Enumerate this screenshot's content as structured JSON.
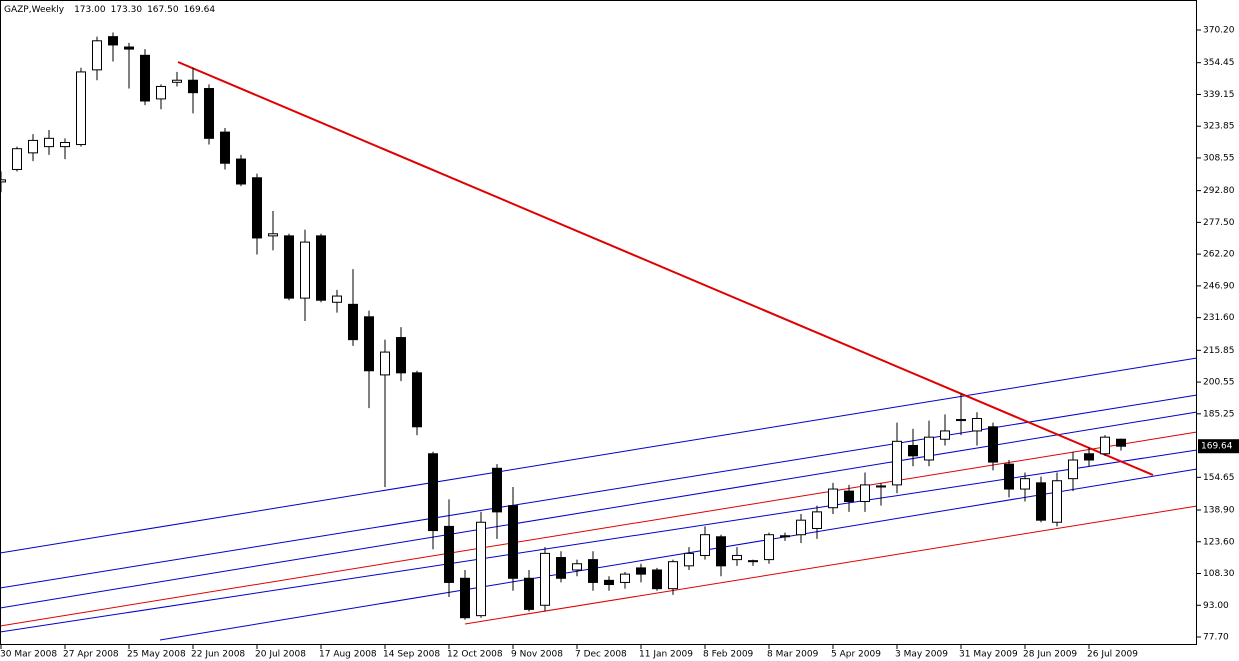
{
  "chart_data": {
    "type": "candlestick",
    "title": "GAZP,Weekly",
    "title_values": [
      "173.00",
      "173.30",
      "167.50",
      "169.64"
    ],
    "categories": [
      "30 Mar 2008",
      null,
      null,
      null,
      "27 Apr 2008",
      null,
      null,
      null,
      "25 May 2008",
      null,
      null,
      null,
      "22 Jun 2008",
      null,
      null,
      null,
      "20 Jul 2008",
      null,
      null,
      null,
      "17 Aug 2008",
      null,
      null,
      null,
      "14 Sep 2008",
      null,
      null,
      null,
      "12 Oct 2008",
      null,
      null,
      null,
      "9 Nov 2008",
      null,
      null,
      null,
      "7 Dec 2008",
      null,
      null,
      null,
      "11 Jan 2009",
      null,
      null,
      null,
      "8 Feb 2009",
      null,
      null,
      null,
      "8 Mar 2009",
      null,
      null,
      null,
      "5 Apr 2009",
      null,
      null,
      null,
      "3 May 2009",
      null,
      null,
      null,
      "31 May 2009",
      null,
      null,
      null,
      "28 Jun 2009",
      null,
      null,
      null,
      "26 Jul 2009",
      null,
      null
    ],
    "open": [
      297,
      303,
      311,
      314,
      314,
      315,
      351,
      367,
      362,
      358,
      337,
      345,
      346,
      342,
      321,
      308,
      299,
      271,
      271,
      241,
      271,
      239,
      238,
      232,
      204,
      222,
      205,
      166,
      131,
      106,
      88,
      159,
      141,
      106,
      93,
      116,
      110,
      115,
      105,
      104,
      111,
      110,
      101,
      112,
      117,
      126,
      115,
      114,
      115,
      126,
      127,
      130,
      140,
      148,
      143,
      150,
      151,
      170,
      163,
      173,
      182,
      177,
      179,
      161,
      149,
      152,
      133,
      154,
      166,
      166,
      173.0
    ],
    "high": [
      302,
      314,
      320,
      322,
      318,
      352,
      367,
      369,
      364,
      361,
      344,
      350,
      352,
      344,
      323,
      310,
      301,
      283,
      272,
      274,
      272,
      245,
      255,
      235,
      221,
      227,
      206,
      167,
      144,
      110,
      138,
      161,
      150,
      110,
      121,
      119,
      115,
      119,
      107,
      109,
      113,
      111,
      115,
      121,
      131,
      127,
      121,
      115,
      128,
      128,
      137,
      141,
      152,
      151,
      157,
      152,
      181,
      178,
      182,
      185,
      195,
      186,
      181,
      163,
      157,
      155,
      157,
      167,
      169,
      175,
      173.3
    ],
    "low": [
      292,
      302,
      307,
      310,
      308,
      314,
      346,
      355,
      342,
      334,
      332,
      343,
      330,
      315,
      303,
      295,
      262,
      264,
      240,
      230,
      239,
      234,
      218,
      188,
      150,
      201,
      175,
      120,
      97,
      86,
      87,
      125,
      100,
      90,
      90,
      104,
      107,
      100,
      100,
      101,
      104,
      100,
      98,
      110,
      115,
      107,
      112,
      112,
      113,
      124,
      123,
      125,
      137,
      138,
      138,
      141,
      147,
      160,
      160,
      170,
      175,
      170,
      158,
      145,
      143,
      133,
      131,
      148,
      160,
      165,
      167.5
    ],
    "close": [
      298,
      313,
      317,
      318,
      316,
      350,
      365,
      363,
      361,
      336,
      343,
      346,
      340,
      318,
      306,
      296,
      270,
      272,
      241,
      268,
      240,
      242,
      221,
      206,
      215,
      205,
      179,
      129,
      104,
      87,
      133,
      138,
      106,
      91,
      118,
      106,
      113,
      104,
      103,
      108,
      108,
      101,
      114,
      118,
      127,
      112,
      117,
      114.5,
      127,
      126.5,
      134,
      138,
      149,
      143,
      151,
      150.5,
      172,
      165,
      174,
      177,
      182.5,
      183,
      162,
      149,
      154,
      134,
      153,
      163,
      163,
      174,
      169.64
    ],
    "up_color": "#ffffff",
    "down_color": "#000000",
    "ylim": [
      73.85,
      384.66
    ],
    "yticks": [
      {
        "value": 370.2,
        "label": "370.20"
      },
      {
        "value": 354.45,
        "label": "354.45"
      },
      {
        "value": 339.15,
        "label": "339.15"
      },
      {
        "value": 323.85,
        "label": "323.85"
      },
      {
        "value": 308.55,
        "label": "308.55"
      },
      {
        "value": 292.8,
        "label": "292.80"
      },
      {
        "value": 277.5,
        "label": "277.50"
      },
      {
        "value": 262.2,
        "label": "262.20"
      },
      {
        "value": 246.9,
        "label": "246.90"
      },
      {
        "value": 231.6,
        "label": "231.60"
      },
      {
        "value": 215.85,
        "label": "215.85"
      },
      {
        "value": 200.55,
        "label": "200.55"
      },
      {
        "value": 185.25,
        "label": "185.25"
      },
      {
        "value": 154.65,
        "label": "154.65"
      },
      {
        "value": 138.9,
        "label": "138.90"
      },
      {
        "value": 123.6,
        "label": "123.60"
      },
      {
        "value": 108.3,
        "label": "108.30"
      },
      {
        "value": 93,
        "label": "93.00"
      },
      {
        "value": 77.7,
        "label": "77.70"
      }
    ],
    "last_price": {
      "value": 169.64,
      "label": "169.64"
    }
  }
}
